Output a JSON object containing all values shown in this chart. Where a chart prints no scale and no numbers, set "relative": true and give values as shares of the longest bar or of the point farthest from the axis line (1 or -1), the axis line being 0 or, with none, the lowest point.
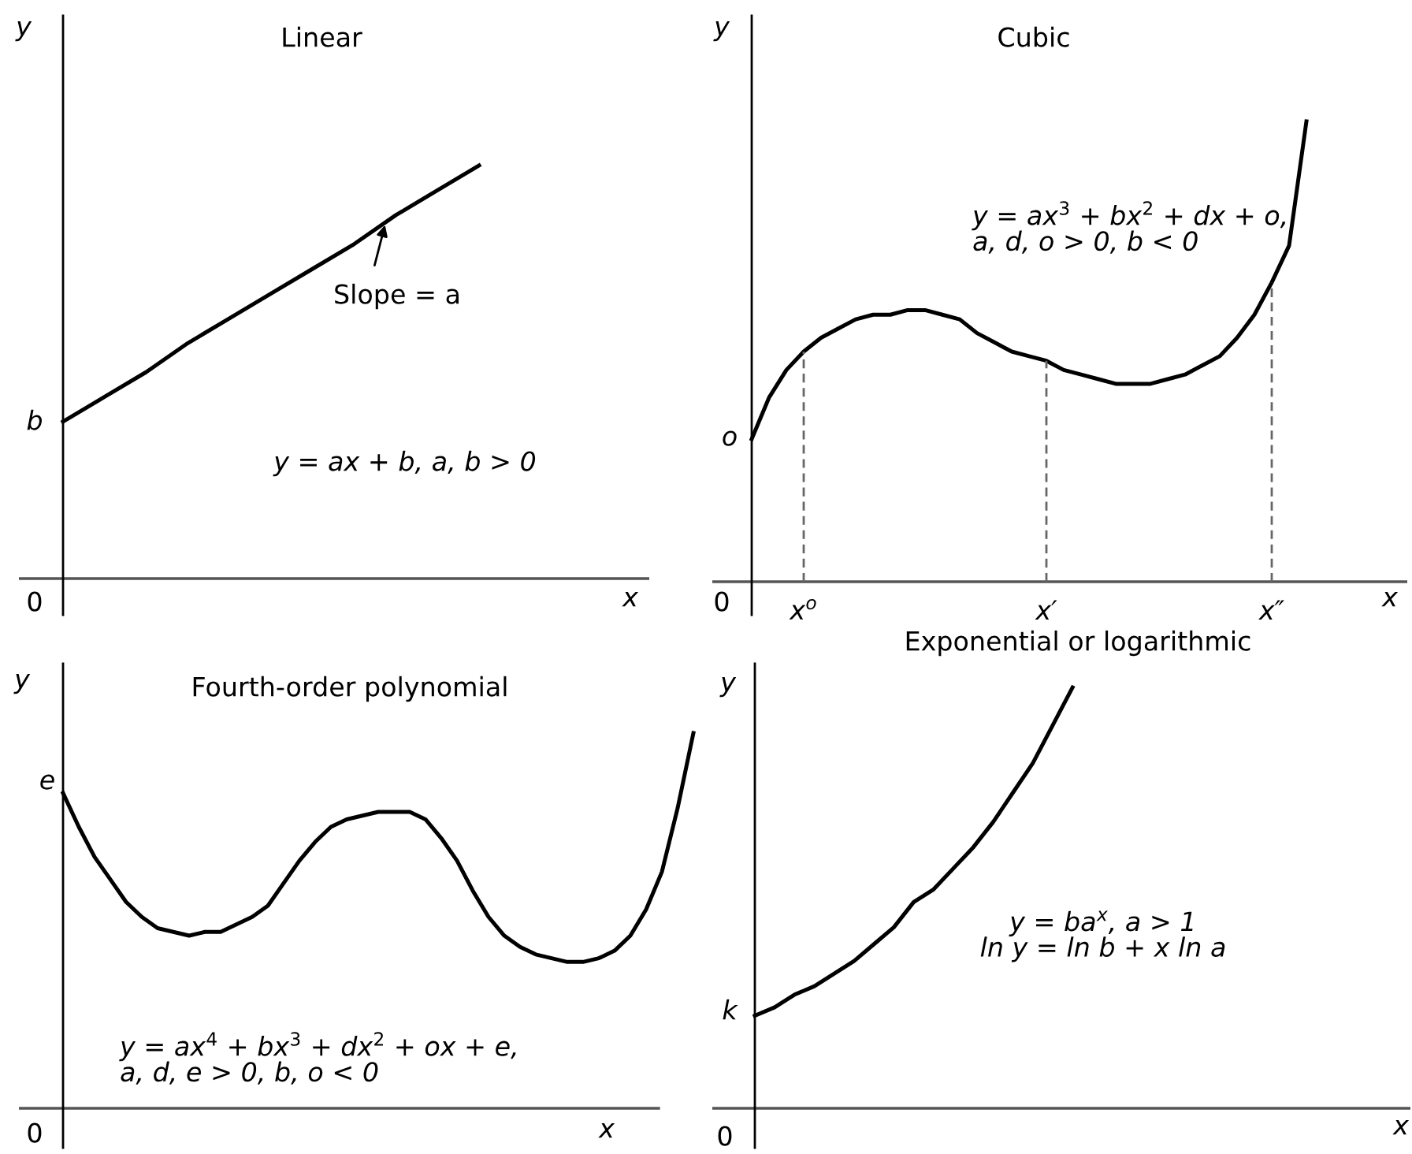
{
  "chart_data": [
    {
      "type": "line",
      "title": "Linear",
      "xlabel": "x",
      "ylabel": "y",
      "relative": true,
      "categories": [
        null,
        null,
        null,
        null,
        null,
        null,
        null,
        null,
        null,
        null,
        null,
        null,
        null,
        null,
        null
      ],
      "series": [
        {
          "color": "#000000",
          "values": [
            0.38,
            0.44,
            0.5,
            0.57,
            0.63,
            0.69,
            0.75,
            0.81,
            0.88,
            0.94,
            1.0,
            null,
            null,
            null,
            null
          ]
        }
      ],
      "annotations": [
        "b",
        "0",
        "Slope = a",
        "y = ax + b, a, b > 0"
      ]
    },
    {
      "type": "line",
      "title": "Cubic",
      "xlabel": "x",
      "ylabel": "y",
      "relative": true,
      "categories": [
        null,
        null,
        null,
        "x$^{o}$",
        null,
        null,
        null,
        null,
        null,
        null,
        null,
        null,
        null,
        null,
        null,
        null,
        null,
        "x′",
        null,
        null,
        null,
        null,
        null,
        null,
        null,
        null,
        null,
        null,
        null,
        null,
        "x″",
        null,
        null,
        null,
        null,
        null,
        null,
        null,
        null
      ],
      "series": [
        {
          "color": "#000000",
          "values": [
            0.31,
            0.4,
            0.46,
            0.5,
            0.53,
            0.55,
            0.57,
            0.58,
            0.58,
            0.59,
            0.59,
            0.58,
            0.57,
            0.54,
            0.52,
            0.5,
            0.49,
            0.48,
            0.46,
            0.45,
            0.44,
            0.43,
            0.43,
            0.43,
            0.44,
            0.45,
            0.47,
            0.49,
            0.53,
            0.58,
            0.65,
            0.73,
            1.0,
            null,
            null,
            null,
            null,
            null,
            null
          ]
        }
      ],
      "ref_lines": [
        {
          "axis": "x",
          "value": "x$^{o}$",
          "color": "#666666",
          "line_style": "dashed"
        },
        {
          "axis": "x",
          "value": "x′",
          "color": "#666666",
          "line_style": "dashed"
        },
        {
          "axis": "x",
          "value": "x″",
          "color": "#666666",
          "line_style": "dashed"
        }
      ],
      "annotations": [
        "o",
        "0",
        "y = ax$^{3}$ + bx$^{2}$ + dx + o,\na, d, o > 0, b < 0"
      ]
    },
    {
      "type": "line",
      "title": "Fourth-order polynomial",
      "xlabel": "x",
      "ylabel": "y",
      "relative": true,
      "categories": [
        null,
        null,
        null,
        null,
        null,
        null,
        null,
        null,
        null,
        null,
        null,
        null,
        null,
        null,
        null,
        null,
        null,
        null,
        null,
        null,
        null,
        null,
        null,
        null,
        null,
        null,
        null,
        null,
        null,
        null,
        null,
        null,
        null,
        null,
        null,
        null,
        null,
        null,
        null,
        null,
        null
      ],
      "series": [
        {
          "color": "#000000",
          "values": [
            0.84,
            0.75,
            0.67,
            0.61,
            0.55,
            0.51,
            0.48,
            0.47,
            0.46,
            0.47,
            0.47,
            0.49,
            0.51,
            0.54,
            0.6,
            0.66,
            0.71,
            0.75,
            0.77,
            0.78,
            0.79,
            0.79,
            0.79,
            0.77,
            0.72,
            0.66,
            0.58,
            0.51,
            0.46,
            0.43,
            0.41,
            0.4,
            0.39,
            0.39,
            0.4,
            0.42,
            0.46,
            0.53,
            0.63,
            0.8,
            1.0
          ]
        }
      ],
      "annotations": [
        "e",
        "0",
        "y = ax$^{4}$ + bx$^{3}$ + dx$^{2}$ + ox + e,\na, d, e > 0, b, o < 0"
      ]
    },
    {
      "type": "line",
      "title": "Exponential or logarithmic",
      "xlabel": "x",
      "ylabel": "y",
      "relative": true,
      "categories": [
        null,
        null,
        null,
        null,
        null,
        null,
        null,
        null,
        null,
        null,
        null,
        null,
        null,
        null,
        null,
        null,
        null,
        null,
        null,
        null,
        null,
        null,
        null,
        null,
        null,
        null,
        null,
        null,
        null,
        null,
        null,
        null,
        null,
        null
      ],
      "series": [
        {
          "color": "#000000",
          "values": [
            0.22,
            0.24,
            0.27,
            0.29,
            0.32,
            0.35,
            0.39,
            0.43,
            0.49,
            0.52,
            0.57,
            0.62,
            0.68,
            0.75,
            0.82,
            0.91,
            1.0,
            null,
            null,
            null,
            null,
            null,
            null,
            null,
            null,
            null,
            null,
            null,
            null,
            null,
            null,
            null,
            null,
            null
          ]
        }
      ],
      "annotations": [
        "k",
        "0",
        "y = ba$^{x}$, a > 1\nln y = ln b + x ln a"
      ]
    }
  ]
}
